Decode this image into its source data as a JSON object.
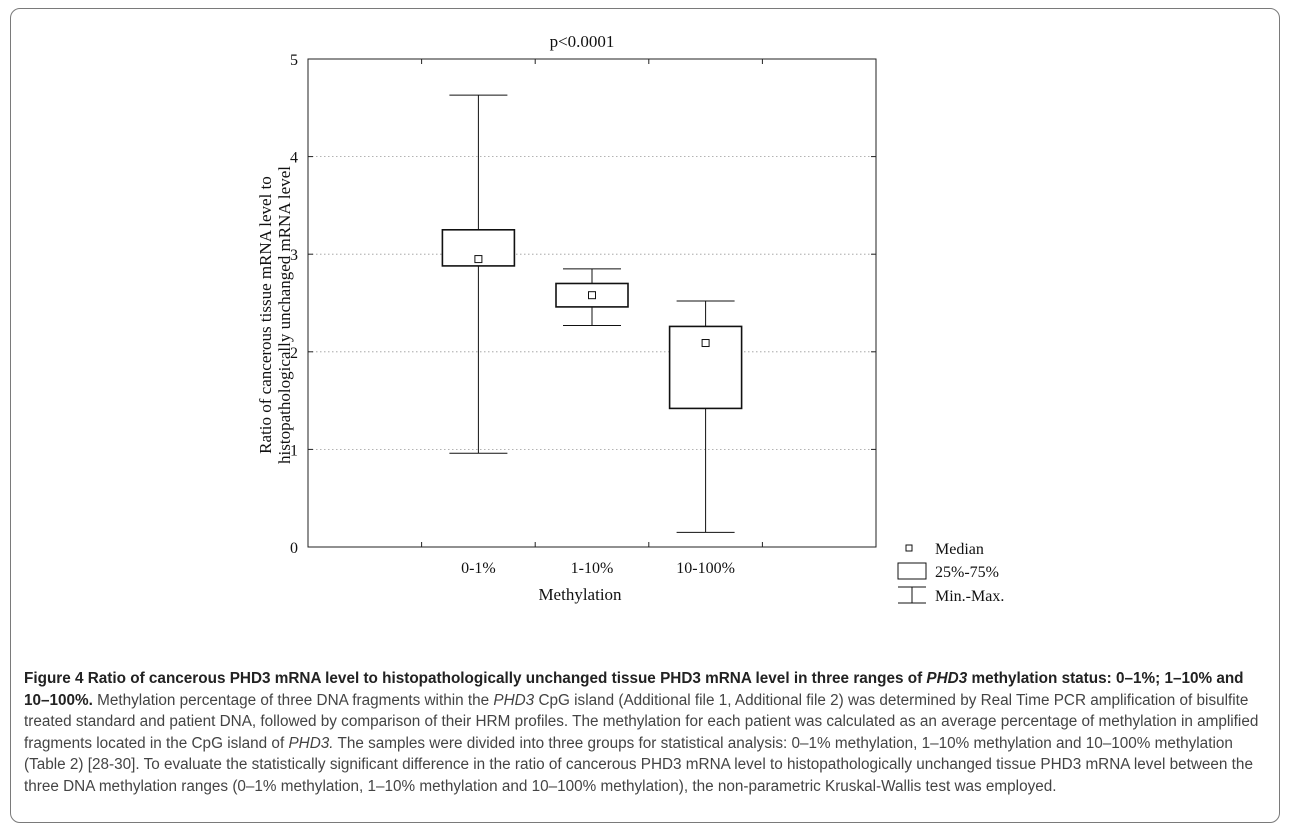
{
  "chart_data": {
    "type": "box",
    "title": "p<0.0001",
    "xlabel": "Methylation",
    "ylabel_lines": [
      "Ratio of cancerous tissue mRNA level to",
      "histopathologically unchanged mRNA level"
    ],
    "ylim": [
      0,
      5
    ],
    "yticks": [
      "0",
      "1",
      "2",
      "3",
      "4",
      "5"
    ],
    "grid": "horizontal dotted",
    "legend_position": "right-bottom",
    "legend": [
      "Median",
      "25%-75%",
      "Min.-Max."
    ],
    "categories": [
      "0-1%",
      "1-10%",
      "10-100%"
    ],
    "boxes": [
      {
        "category": "0-1%",
        "min": 0.96,
        "q1": 2.88,
        "median": 2.95,
        "q3": 3.25,
        "max": 4.63
      },
      {
        "category": "1-10%",
        "min": 2.27,
        "q1": 2.46,
        "median": 2.58,
        "q3": 2.7,
        "max": 2.85
      },
      {
        "category": "10-100%",
        "min": 0.15,
        "q1": 1.42,
        "median": 2.09,
        "q3": 2.26,
        "max": 2.52
      }
    ]
  },
  "caption": {
    "title_part1": "Figure 4 Ratio of cancerous PHD3 mRNA level to histopathologically unchanged tissue PHD3 mRNA level in three ranges of ",
    "title_italic": "PHD3",
    "title_part2": " methylation status: 0–1%; 1–10% and 10–100%.",
    "body_part1": " Methylation percentage of three DNA fragments within the ",
    "body_italic1": "PHD3",
    "body_part2": " CpG island (Additional file 1, Additional file 2) was determined by Real Time PCR amplification of bisulfite treated standard and patient DNA, followed by comparison of their HRM profiles. The methylation for each patient was calculated as an average percentage of methylation in amplified fragments located in the CpG island of ",
    "body_italic2": "PHD3.",
    "body_part3": " The samples were divided into three groups for statistical analysis: 0–1% methylation, 1–10% methylation and 10–100% methylation (Table 2) [28-30]. To evaluate the statistically significant difference in the ratio of cancerous PHD3 mRNA level to histopathologically unchanged tissue PHD3 mRNA level between the three DNA methylation ranges (0–1% methylation, 1–10% methylation and 10–100% methylation), the non-parametric Kruskal-Wallis test was employed."
  }
}
